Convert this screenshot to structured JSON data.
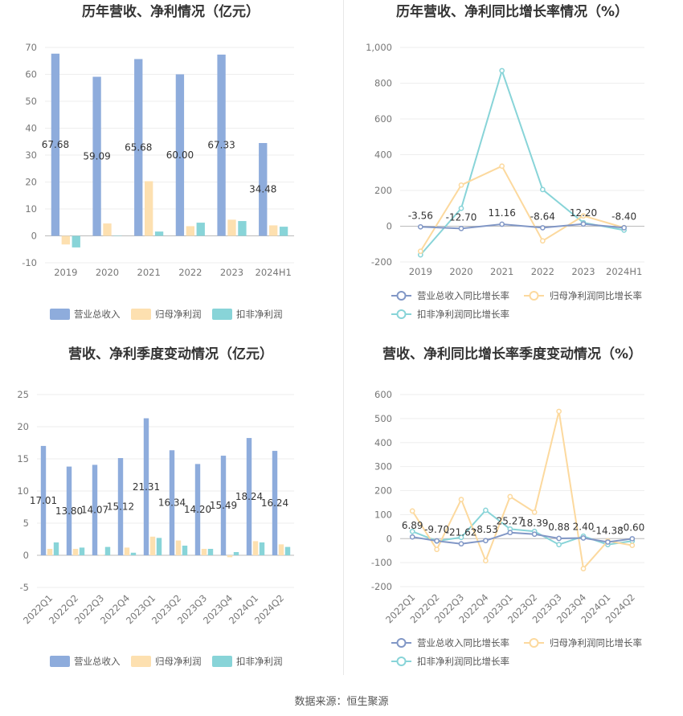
{
  "footer": {
    "source": "数据来源：恒生聚源"
  },
  "legend_colors": {
    "revenue": "#8eacdc",
    "parent_profit": "#fde0b0",
    "deducted_profit": "#88d4d8"
  },
  "chart_data": [
    {
      "type": "bar",
      "title": "历年营收、净利情况（亿元）",
      "categories": [
        "2019",
        "2020",
        "2021",
        "2022",
        "2023",
        "2024H1"
      ],
      "ylim": [
        -10,
        70
      ],
      "yticks": [
        "-10",
        "0",
        "10",
        "20",
        "30",
        "40",
        "50",
        "60",
        "70"
      ],
      "grid": true,
      "legend_position": "bottom",
      "series": [
        {
          "name": "营业总收入",
          "color": "#8eacdc",
          "values": [
            67.68,
            59.09,
            65.68,
            60.0,
            67.33,
            34.48
          ],
          "labels": [
            "67.68",
            "59.09",
            "65.68",
            "60.00",
            "67.33",
            "34.48"
          ]
        },
        {
          "name": "归母净利润",
          "color": "#fde0b0",
          "values": [
            -3.2,
            4.6,
            20.3,
            3.6,
            6.0,
            3.9
          ]
        },
        {
          "name": "扣非净利润",
          "color": "#88d4d8",
          "values": [
            -4.3,
            0.1,
            1.6,
            4.9,
            5.5,
            3.4
          ]
        }
      ]
    },
    {
      "type": "line",
      "title": "历年营收、净利同比增长率情况（%）",
      "categories": [
        "2019",
        "2020",
        "2021",
        "2022",
        "2023",
        "2024H1"
      ],
      "ylim": [
        -200,
        1000
      ],
      "yticks": [
        "-200",
        "0",
        "200",
        "400",
        "600",
        "800",
        "1,000"
      ],
      "grid": true,
      "legend_position": "bottom",
      "series": [
        {
          "name": "营业总收入同比增长率",
          "color": "#8197c6",
          "values": [
            -3.56,
            -12.7,
            11.16,
            -8.64,
            12.2,
            -8.4
          ],
          "labels": [
            "-3.56",
            "-12.70",
            "11.16",
            "-8.64",
            "12.20",
            "-8.40"
          ]
        },
        {
          "name": "归母净利润同比增长率",
          "color": "#fcd99e",
          "values": [
            -140,
            230,
            336,
            -82,
            58,
            -8
          ]
        },
        {
          "name": "扣非净利润同比增长率",
          "color": "#88d4d8",
          "values": [
            -160,
            100,
            870,
            205,
            20,
            -22
          ]
        }
      ]
    },
    {
      "type": "bar",
      "title": "营收、净利季度变动情况（亿元）",
      "categories": [
        "2022Q1",
        "2022Q2",
        "2022Q3",
        "2022Q4",
        "2023Q1",
        "2023Q2",
        "2023Q3",
        "2023Q4",
        "2024Q1",
        "2024Q2"
      ],
      "ylim": [
        -5,
        25
      ],
      "yticks": [
        "-5",
        "0",
        "5",
        "10",
        "15",
        "20",
        "25"
      ],
      "grid": true,
      "legend_position": "bottom",
      "series": [
        {
          "name": "营业总收入",
          "color": "#8eacdc",
          "values": [
            17.01,
            13.8,
            14.07,
            15.12,
            21.31,
            16.34,
            14.2,
            15.49,
            18.24,
            16.24
          ],
          "labels": [
            "17.01",
            "13.80",
            "14.07",
            "15.12",
            "21.31",
            "16.34",
            "14.20",
            "15.49",
            "18.24",
            "16.24"
          ]
        },
        {
          "name": "归母净利润",
          "color": "#fde0b0",
          "values": [
            1.0,
            1.0,
            0.05,
            1.2,
            2.9,
            2.3,
            1.0,
            -0.3,
            2.2,
            1.7
          ]
        },
        {
          "name": "扣非净利润",
          "color": "#88d4d8",
          "values": [
            2.0,
            1.2,
            1.3,
            0.4,
            2.7,
            1.5,
            1.0,
            0.5,
            2.0,
            1.3
          ]
        }
      ]
    },
    {
      "type": "line",
      "title": "营收、净利同比增长率季度变动情况（%）",
      "categories": [
        "2022Q1",
        "2022Q2",
        "2022Q3",
        "2022Q4",
        "2023Q1",
        "2023Q2",
        "2023Q3",
        "2023Q4",
        "2024Q1",
        "2024Q2"
      ],
      "ylim": [
        -200,
        600
      ],
      "yticks": [
        "-200",
        "-100",
        "0",
        "100",
        "200",
        "300",
        "400",
        "500",
        "600"
      ],
      "grid": true,
      "legend_position": "bottom",
      "series": [
        {
          "name": "营业总收入同比增长率",
          "color": "#8197c6",
          "values": [
            6.89,
            -9.7,
            -21.62,
            -8.53,
            25.27,
            18.39,
            0.88,
            2.4,
            -14.38,
            -0.6
          ],
          "labels": [
            "6.89",
            "-9.70",
            "-21.62",
            "-8.53",
            "25.27",
            "18.39",
            "0.88",
            "2.40",
            "-14.38",
            "-0.60"
          ]
        },
        {
          "name": "归母净利润同比增长率",
          "color": "#fcd99e",
          "values": [
            115,
            -45,
            163,
            -92,
            175,
            110,
            530,
            -125,
            -10,
            -28
          ]
        },
        {
          "name": "扣非净利润同比增长率",
          "color": "#88d4d8",
          "values": [
            30,
            -10,
            5,
            118,
            40,
            30,
            -25,
            10,
            -25,
            -10
          ]
        }
      ]
    }
  ]
}
